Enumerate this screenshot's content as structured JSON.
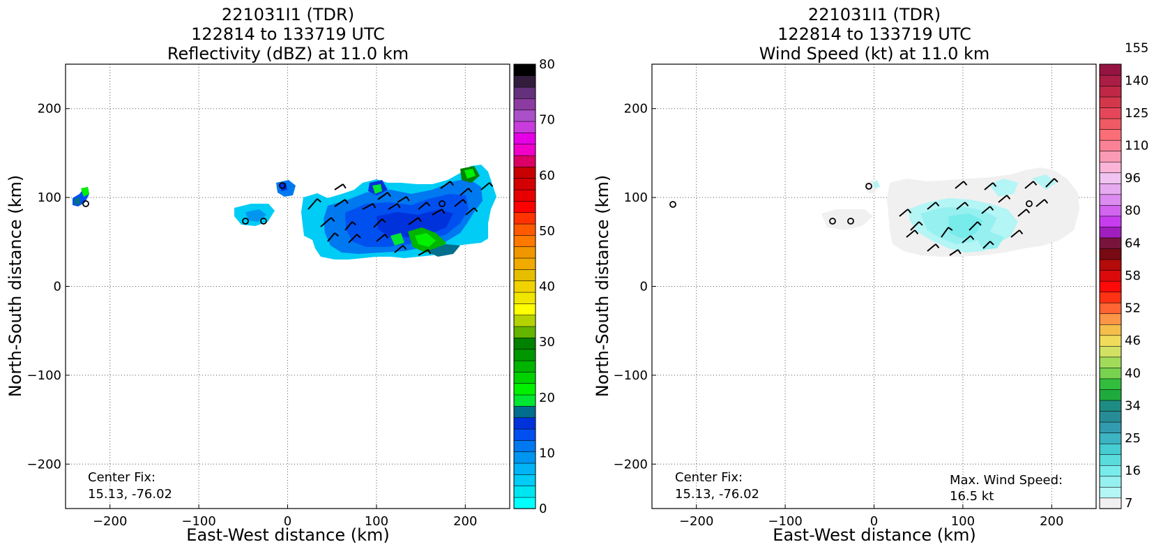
{
  "panels": [
    {
      "title_lines": [
        "221031I1 (TDR)",
        "122814 to 133719 UTC",
        "Reflectivity (dBZ) at 11.0 km"
      ],
      "center_fix_label": "Center Fix:",
      "center_fix_value": "15.13, -76.02"
    },
    {
      "title_lines": [
        "221031I1 (TDR)",
        "122814 to 133719 UTC",
        "Wind Speed (kt) at 11.0 km"
      ],
      "center_fix_label": "Center Fix:",
      "center_fix_value": "15.13, -76.02",
      "max_wind_label": "Max. Wind Speed:",
      "max_wind_value": "16.5 kt"
    }
  ],
  "chart_data": [
    {
      "type": "heatmap",
      "title": "221031I1 (TDR) 122814 to 133719 UTC Reflectivity (dBZ) at 11.0 km",
      "xlabel": "East-West distance (km)",
      "ylabel": "North-South distance (km)",
      "xlim": [
        -250,
        250
      ],
      "ylim": [
        -250,
        250
      ],
      "x_ticks": [
        -200,
        -100,
        0,
        100,
        200
      ],
      "y_ticks": [
        -200,
        -100,
        0,
        100,
        200
      ],
      "grid": true,
      "colorbar": {
        "range": [
          0,
          80
        ],
        "ticks": [
          0,
          10,
          20,
          30,
          40,
          50,
          60,
          70,
          80
        ],
        "colors": [
          "#00ffff",
          "#00e6f0",
          "#00ccf5",
          "#00b4f5",
          "#0096f0",
          "#0078f0",
          "#0050f0",
          "#0032dc",
          "#006e8c",
          "#00e632",
          "#00f000",
          "#00d200",
          "#00b400",
          "#009600",
          "#008200",
          "#64b400",
          "#b4d200",
          "#ffff00",
          "#f0e600",
          "#f0d200",
          "#e6be00",
          "#f0aa00",
          "#f09600",
          "#ff7800",
          "#ff5a00",
          "#ff3200",
          "#ff0000",
          "#e60000",
          "#d20000",
          "#c80000",
          "#dc0064",
          "#f000c8",
          "#e600e6",
          "#c83cdc",
          "#aa50c8",
          "#8c3ca0",
          "#64327d",
          "#321e3c",
          "#000000"
        ]
      },
      "overlays": [
        "wind barbs",
        "circle markers"
      ]
    },
    {
      "type": "heatmap",
      "title": "221031I1 (TDR) 122814 to 133719 UTC Wind Speed (kt) at 11.0 km",
      "xlabel": "East-West distance (km)",
      "ylabel": "North-South distance (km)",
      "xlim": [
        -250,
        250
      ],
      "ylim": [
        -250,
        250
      ],
      "x_ticks": [
        -200,
        -100,
        0,
        100,
        200
      ],
      "y_ticks": [
        -200,
        -100,
        0,
        100,
        200
      ],
      "grid": true,
      "max_wind_speed_kt": 16.5,
      "colorbar": {
        "tick_labels": [
          "7",
          "16",
          "25",
          "34",
          "40",
          "46",
          "52",
          "58",
          "64",
          "80",
          "96",
          "110",
          "125",
          "140",
          "155"
        ],
        "colors": [
          "#f0f0f0",
          "#b4f5f5",
          "#96f0f0",
          "#78ebeb",
          "#5adcdc",
          "#46cdd2",
          "#3cb4c3",
          "#329baf",
          "#288c96",
          "#1e8c82",
          "#1eaa3c",
          "#32be3c",
          "#78d250",
          "#a0dc5a",
          "#d2e164",
          "#f0dc5a",
          "#f5be4b",
          "#fa9646",
          "#ff6432",
          "#ff3214",
          "#ff0a0a",
          "#dc0a0a",
          "#b40a0a",
          "#780a14",
          "#78143c",
          "#a01ebe",
          "#c83cf0",
          "#d264f0",
          "#dc8cf0",
          "#e6aaf0",
          "#f0c3f0",
          "#fab4d7",
          "#fa9bb4",
          "#fa8296",
          "#fa6e78",
          "#f05a64",
          "#e6465a",
          "#d2374b",
          "#be2846",
          "#aa1e46",
          "#961441"
        ]
      },
      "overlays": [
        "wind barbs",
        "circle markers"
      ]
    }
  ]
}
